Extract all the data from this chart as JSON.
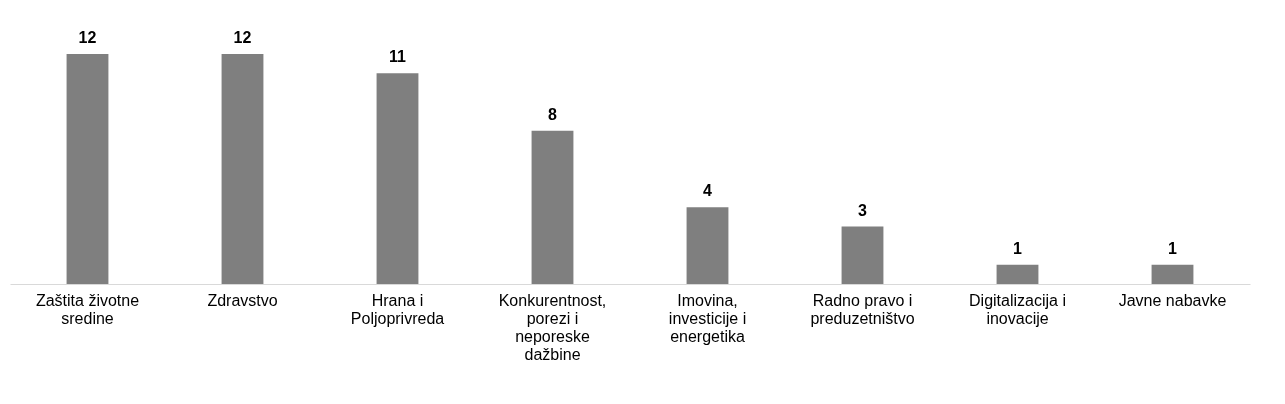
{
  "chart_data": {
    "type": "bar",
    "categories": [
      "Zaštita životne sredine",
      "Zdravstvo",
      "Hrana i Poljoprivreda",
      "Konkurentnost, porezi i neporeske dažbine",
      "Imovina, investicije i energetika",
      "Radno pravo i preduzetništvo",
      "Digitalizacija i inovacije",
      "Javne nabavke"
    ],
    "values": [
      12,
      12,
      11,
      8,
      4,
      3,
      1,
      1
    ],
    "color": "#7f7f7f",
    "data_labels": true
  }
}
